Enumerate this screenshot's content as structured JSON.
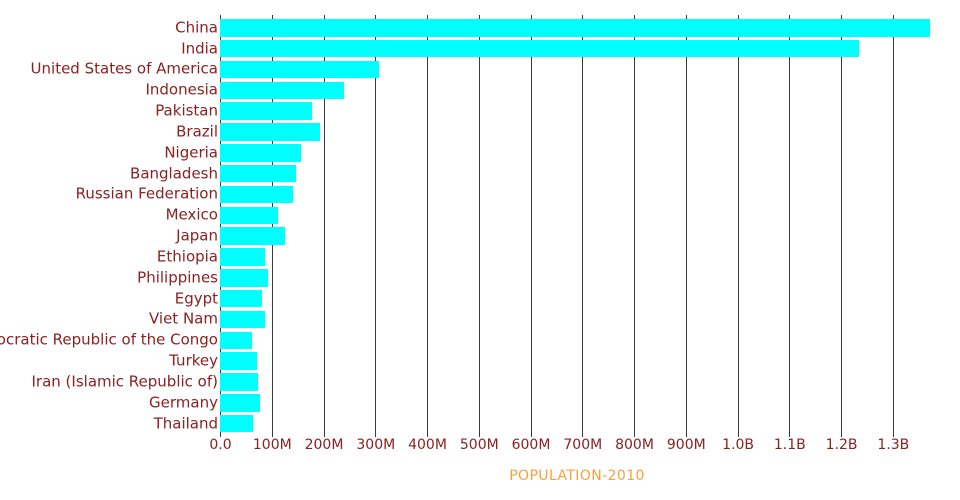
{
  "chart_data": {
    "type": "bar",
    "orientation": "horizontal",
    "title": "POPULATION-2010",
    "categories": [
      "China",
      "India",
      "United States of America",
      "Indonesia",
      "Pakistan",
      "Brazil",
      "Nigeria",
      "Bangladesh",
      "Russian Federation",
      "Mexico",
      "Japan",
      "Ethiopia",
      "Philippines",
      "Egypt",
      "Viet Nam",
      "Democratic Republic of the Congo",
      "Turkey",
      "Iran (Islamic Republic of)",
      "Germany",
      "Thailand"
    ],
    "values_millions": [
      1371,
      1234,
      308,
      240,
      178,
      193,
      157,
      147,
      141,
      112,
      126,
      86,
      93,
      81,
      87,
      62,
      72,
      74,
      78,
      64
    ],
    "x_tick_labels": [
      "0.0",
      "100M",
      "200M",
      "300M",
      "400M",
      "500M",
      "600M",
      "700M",
      "800M",
      "900M",
      "1.0B",
      "1.1B",
      "1.2B",
      "1.3B"
    ],
    "x_tick_step_millions": 100,
    "xlim_millions": [
      0,
      1424
    ],
    "grid": "vertical-on",
    "legend": "none",
    "xlabel": "POPULATION-2010",
    "ylabel": "",
    "colors": {
      "bar": "#00ffff",
      "category_label": "#8b2121",
      "tick_label": "#8b2121",
      "title": "#f8a13e",
      "gridline": "#3b3b3b",
      "background": "#ffffff"
    }
  }
}
